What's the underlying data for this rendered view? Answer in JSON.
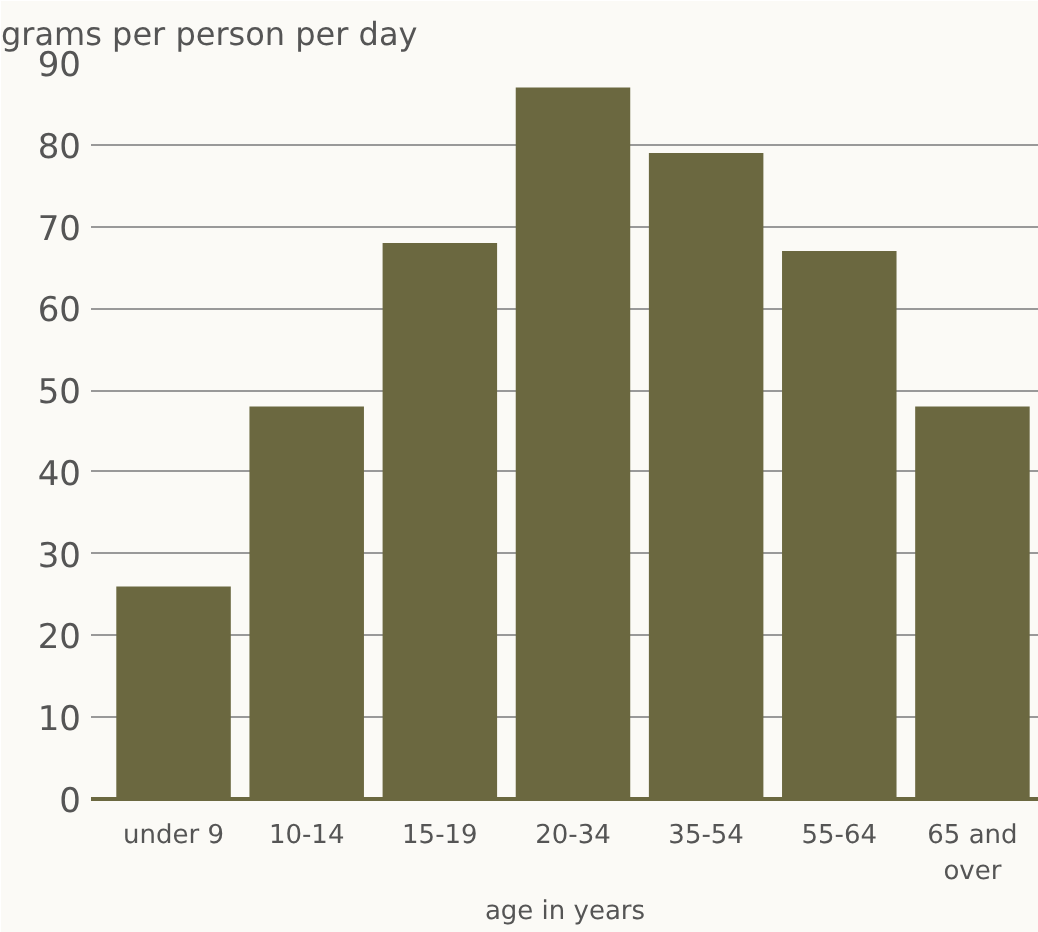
{
  "chart_data": {
    "type": "bar",
    "ylabel": "grams per person per day",
    "xlabel": "age in years",
    "categories": [
      "under 9",
      "10-14",
      "15-19",
      "20-34",
      "35-54",
      "55-64",
      "65 and over"
    ],
    "values": [
      26,
      48,
      68,
      87,
      79,
      67,
      48
    ],
    "color": "#6b6840",
    "ylim": [
      0,
      90
    ],
    "yticks": [
      0,
      10,
      20,
      30,
      40,
      50,
      60,
      70,
      80,
      90
    ],
    "grid": "y"
  }
}
